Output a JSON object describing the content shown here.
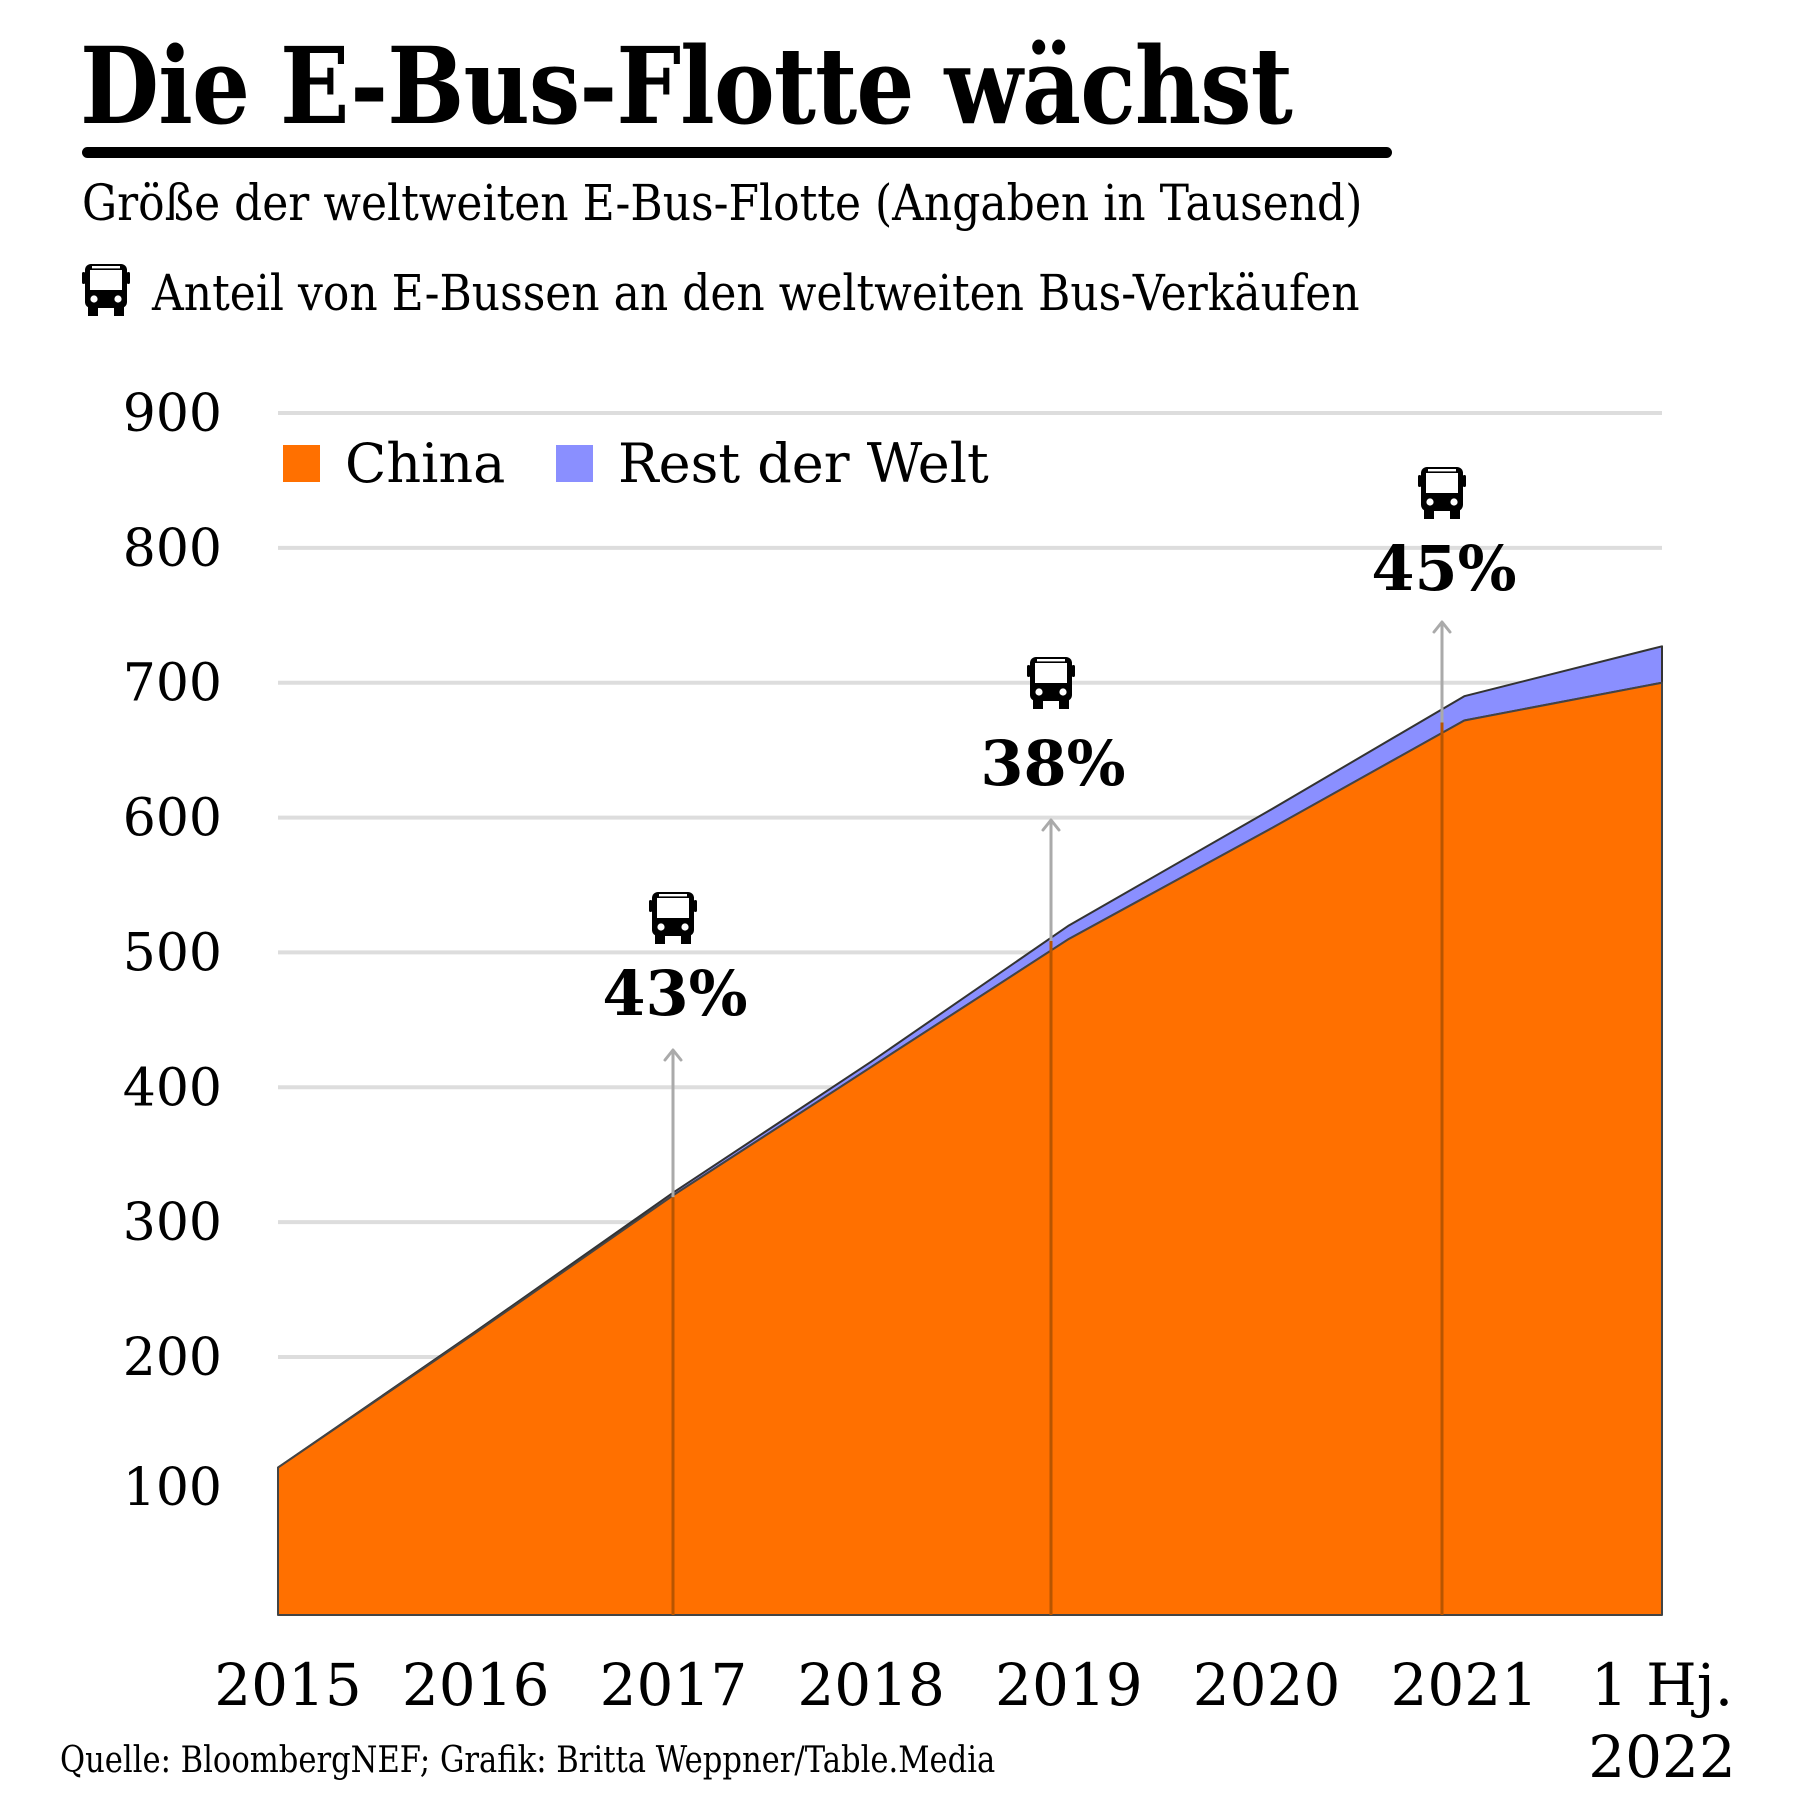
{
  "header": {
    "title": "Die E-Bus-Flotte wächst",
    "subtitle": "Größe der weltweiten E-Bus-Flotte (Angaben in Tausend)",
    "subtitle_icon": "bus-icon",
    "subtitle2": "Anteil von E-Bussen an den weltweiten Bus-Verkäufen"
  },
  "footer": {
    "source": "Quelle: BloombergNEF; Grafik: Britta Weppner/Table.Media"
  },
  "colors": {
    "china": "#FF7000",
    "rest_der_welt": "#8A8FFF",
    "gridline": "#DDDDDD",
    "annotation_arrow": "#AAAAAA"
  },
  "chart_data": {
    "type": "area",
    "stacked": true,
    "title": "Die E-Bus-Flotte wächst",
    "subtitle": "Größe der weltweiten E-Bus-Flotte (Angaben in Tausend)",
    "xlabel": "",
    "ylabel": "",
    "x": [
      "2015",
      "2016",
      "2017",
      "2018",
      "2019",
      "2020",
      "2021",
      "1 Hj. 2022"
    ],
    "x_tick_labels": [
      [
        "2015"
      ],
      [
        "2016"
      ],
      [
        "2017"
      ],
      [
        "2018"
      ],
      [
        "2019"
      ],
      [
        "2020"
      ],
      [
        "2021"
      ],
      [
        "1 Hj.",
        "2022"
      ]
    ],
    "y_ticks": [
      100,
      200,
      300,
      400,
      500,
      600,
      700,
      800,
      900
    ],
    "ylim": [
      0,
      900
    ],
    "grid": true,
    "legend_position": "top-left",
    "series": [
      {
        "name": "China",
        "color": "#FF7000",
        "values": [
          118,
          218,
          320,
          415,
          510,
          590,
          672,
          700
        ]
      },
      {
        "name": "Rest der Welt",
        "color": "#8A8FFF",
        "values": [
          0,
          1,
          2,
          4,
          10,
          14,
          18,
          27
        ]
      }
    ],
    "annotations": [
      {
        "x": "2017",
        "label": "43%",
        "icon": "bus-icon"
      },
      {
        "x": "2019",
        "label": "38%",
        "icon": "bus-icon"
      },
      {
        "x": "2021",
        "label": "45%",
        "icon": "bus-icon"
      }
    ]
  }
}
